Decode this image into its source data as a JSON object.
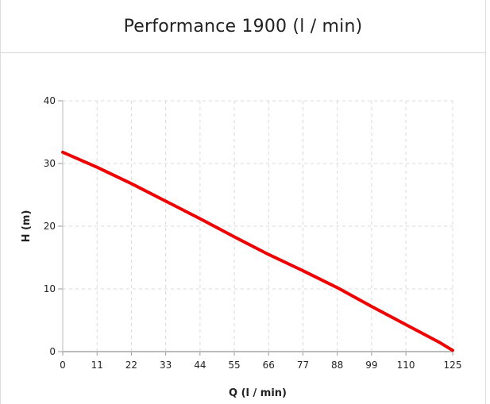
{
  "panel": {
    "title": "Performance 1900 (l / min)"
  },
  "chart_data": {
    "type": "line",
    "title": "Performance 1900 (l / min)",
    "xlabel": "Q (l / min)",
    "ylabel": "H (m)",
    "xlim": [
      0,
      125
    ],
    "ylim": [
      0,
      40
    ],
    "x_ticks": [
      0,
      11,
      22,
      33,
      44,
      55,
      66,
      77,
      88,
      99,
      110,
      125
    ],
    "y_ticks": [
      0,
      10,
      20,
      30,
      40
    ],
    "grid": true,
    "series": [
      {
        "color": "#ee0000",
        "x": [
          0,
          11,
          22,
          33,
          44,
          55,
          66,
          77,
          88,
          99,
          110,
          121,
          125
        ],
        "y": [
          31.8,
          29.4,
          26.8,
          24.0,
          21.2,
          18.3,
          15.5,
          12.9,
          10.2,
          7.2,
          4.3,
          1.4,
          0.2
        ]
      }
    ]
  }
}
